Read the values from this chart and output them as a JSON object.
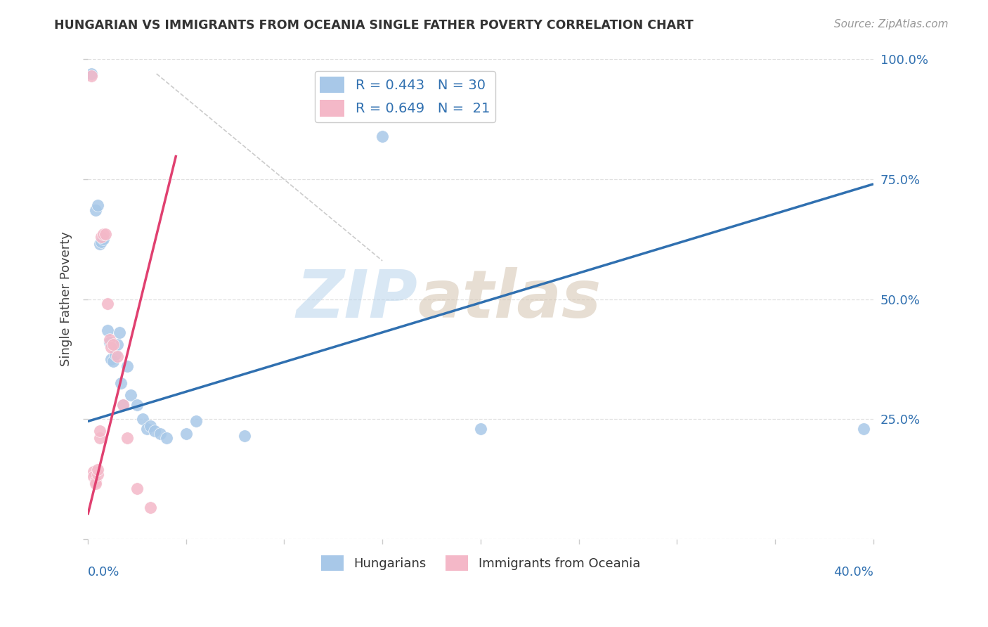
{
  "title": "HUNGARIAN VS IMMIGRANTS FROM OCEANIA SINGLE FATHER POVERTY CORRELATION CHART",
  "source": "Source: ZipAtlas.com",
  "ylabel": "Single Father Poverty",
  "legend_blue_r": "R = 0.443",
  "legend_blue_n": "N = 30",
  "legend_pink_r": "R = 0.649",
  "legend_pink_n": "N =  21",
  "blue_color": "#a8c8e8",
  "pink_color": "#f4b8c8",
  "blue_line_color": "#3070b0",
  "pink_line_color": "#e04070",
  "blue_points": [
    [
      0.2,
      97.0
    ],
    [
      0.4,
      68.5
    ],
    [
      0.5,
      69.5
    ],
    [
      0.6,
      61.5
    ],
    [
      0.7,
      62.0
    ],
    [
      0.8,
      62.5
    ],
    [
      1.0,
      43.5
    ],
    [
      1.1,
      41.0
    ],
    [
      1.2,
      37.5
    ],
    [
      1.3,
      37.0
    ],
    [
      1.4,
      38.5
    ],
    [
      1.5,
      40.5
    ],
    [
      1.6,
      43.0
    ],
    [
      1.7,
      32.5
    ],
    [
      1.8,
      28.0
    ],
    [
      2.0,
      36.0
    ],
    [
      2.2,
      30.0
    ],
    [
      2.5,
      28.0
    ],
    [
      2.8,
      25.0
    ],
    [
      3.0,
      23.0
    ],
    [
      3.2,
      23.5
    ],
    [
      3.4,
      22.5
    ],
    [
      3.7,
      22.0
    ],
    [
      4.0,
      21.0
    ],
    [
      5.0,
      22.0
    ],
    [
      5.5,
      24.5
    ],
    [
      8.0,
      21.5
    ],
    [
      15.0,
      84.0
    ],
    [
      20.0,
      23.0
    ],
    [
      39.5,
      23.0
    ]
  ],
  "pink_points": [
    [
      0.2,
      96.5
    ],
    [
      0.3,
      14.0
    ],
    [
      0.3,
      13.0
    ],
    [
      0.4,
      12.0
    ],
    [
      0.4,
      11.5
    ],
    [
      0.5,
      13.5
    ],
    [
      0.5,
      14.5
    ],
    [
      0.6,
      21.0
    ],
    [
      0.6,
      22.5
    ],
    [
      0.7,
      63.0
    ],
    [
      0.8,
      63.5
    ],
    [
      0.9,
      63.5
    ],
    [
      1.0,
      49.0
    ],
    [
      1.1,
      41.5
    ],
    [
      1.2,
      40.0
    ],
    [
      1.3,
      40.5
    ],
    [
      1.5,
      38.0
    ],
    [
      1.8,
      28.0
    ],
    [
      2.0,
      21.0
    ],
    [
      2.5,
      10.5
    ],
    [
      3.2,
      6.5
    ]
  ],
  "xlim": [
    0.0,
    40.0
  ],
  "ylim": [
    0.0,
    100.0
  ],
  "blue_line_x": [
    0.0,
    40.0
  ],
  "blue_line_y": [
    24.5,
    74.0
  ],
  "pink_line_x": [
    0.0,
    4.5
  ],
  "pink_line_y": [
    5.0,
    80.0
  ],
  "diag_line_x": [
    3.5,
    15.0
  ],
  "diag_line_y": [
    97.0,
    58.0
  ],
  "watermark_zip": "ZIP",
  "watermark_atlas": "atlas",
  "bg_color": "#ffffff",
  "grid_color": "#e0e0e0"
}
